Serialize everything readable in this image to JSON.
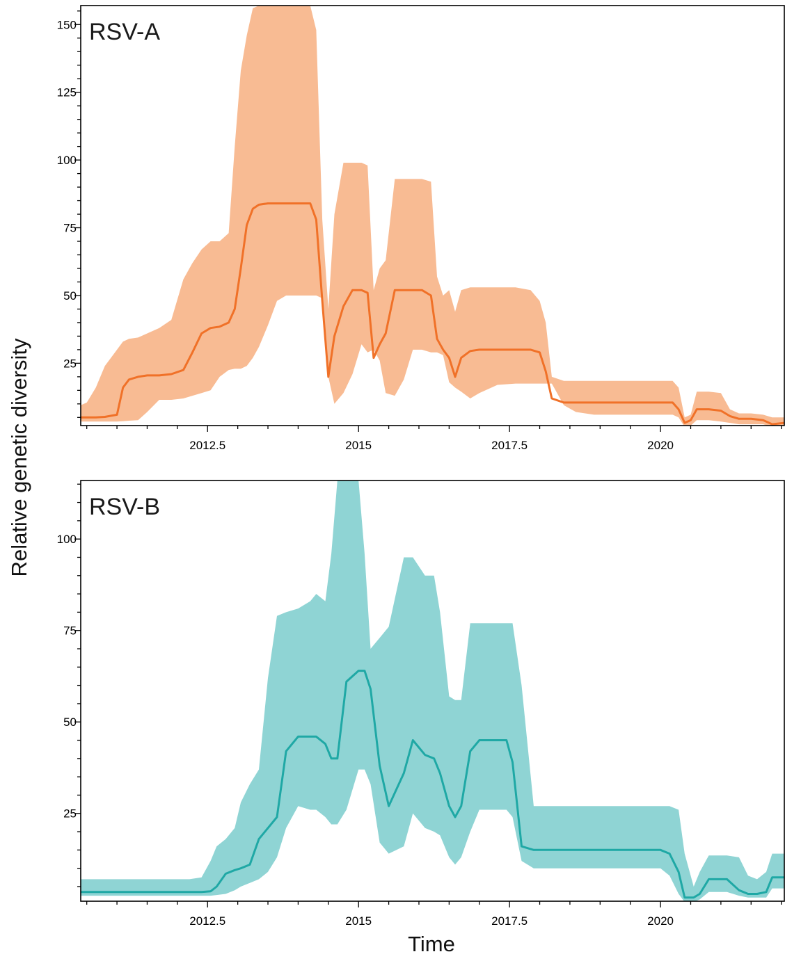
{
  "ylabel": "Relative genetic diversity",
  "xlabel": "Time",
  "colors": {
    "a_line": "#f07128",
    "a_band": "#f8bb93",
    "b_line": "#1fa8a5",
    "b_band": "#8fd4d4"
  },
  "chart_data": [
    {
      "type": "area",
      "label": "RSV-A",
      "xlim": [
        2010.4,
        2022.05
      ],
      "ylim": [
        2,
        157
      ],
      "xticks": [
        2012.5,
        2015,
        2017.5,
        2020
      ],
      "xtick_labels": [
        "2012.5",
        "2015",
        "2017.5",
        "2020"
      ],
      "yticks": [
        25,
        50,
        75,
        100,
        125,
        150
      ],
      "ytick_labels": [
        "25",
        "50",
        "75",
        "100",
        "125",
        "150"
      ],
      "x": [
        2010.4,
        2010.5,
        2010.65,
        2010.8,
        2011.0,
        2011.1,
        2011.2,
        2011.35,
        2011.5,
        2011.7,
        2011.9,
        2012.1,
        2012.25,
        2012.4,
        2012.55,
        2012.7,
        2012.85,
        2012.95,
        2013.05,
        2013.15,
        2013.25,
        2013.35,
        2013.5,
        2013.65,
        2013.8,
        2014.0,
        2014.2,
        2014.3,
        2014.4,
        2014.5,
        2014.6,
        2014.75,
        2014.9,
        2015.05,
        2015.15,
        2015.25,
        2015.35,
        2015.45,
        2015.6,
        2015.75,
        2015.9,
        2016.05,
        2016.2,
        2016.3,
        2016.4,
        2016.5,
        2016.6,
        2016.7,
        2016.85,
        2017.0,
        2017.3,
        2017.6,
        2017.85,
        2018.0,
        2018.1,
        2018.2,
        2018.4,
        2018.6,
        2018.9,
        2019.2,
        2019.6,
        2020.0,
        2020.2,
        2020.3,
        2020.4,
        2020.5,
        2020.6,
        2020.8,
        2021.0,
        2021.15,
        2021.3,
        2021.5,
        2021.7,
        2021.85,
        2022.05
      ],
      "y": [
        5,
        5,
        5,
        5.2,
        6,
        16,
        19,
        20,
        20.5,
        20.5,
        21,
        22.5,
        29,
        36,
        38,
        38.5,
        40,
        45,
        60,
        76,
        82,
        83.5,
        84,
        84,
        84,
        84,
        84,
        78,
        48,
        20,
        35,
        46,
        52,
        52,
        51,
        27,
        32,
        36,
        52,
        52,
        52,
        52,
        50,
        34,
        30,
        27,
        20,
        27,
        29.5,
        30,
        30,
        30,
        30,
        29,
        22,
        12,
        10.5,
        10.5,
        10.5,
        10.5,
        10.5,
        10.5,
        10.5,
        8,
        3,
        4,
        8,
        8,
        7.5,
        5.5,
        4.5,
        4.5,
        4,
        2.5,
        3
      ],
      "lower": [
        3.5,
        3.5,
        3.5,
        3.5,
        3.5,
        3.5,
        3.5,
        3.5,
        3.5,
        3.5,
        3.5,
        3.5,
        3.5,
        3.5,
        3.5,
        3.5,
        3.5,
        3.5,
        3.5,
        3.5,
        3.5,
        3.5,
        3.5,
        3.5,
        3.5,
        3.5,
        3.5,
        3.5,
        3.5,
        3.5,
        3.5,
        3.5,
        3.5,
        3.5,
        3.5,
        3.5,
        3.5,
        3.5,
        3.5,
        3.5,
        3.5,
        3.5,
        3.5,
        3.5,
        3.5,
        3.5,
        3.5,
        3.5,
        3.5,
        3.5,
        3.5,
        3.5,
        3.5,
        3.5,
        3.5,
        3.5,
        3.5,
        3.5,
        3.5,
        3.5,
        3.5,
        3.5,
        3.5,
        3.5,
        1.5,
        2,
        4,
        4,
        3.5,
        3,
        2.5,
        2.5,
        2.5,
        1.5,
        1.5
      ],
      "upper": [
        9.5,
        10.5,
        16,
        24,
        30,
        33,
        34,
        34.5,
        36,
        38,
        41,
        56,
        62,
        67,
        70,
        70,
        73,
        105,
        133,
        146,
        156,
        157,
        157,
        157,
        157,
        157,
        157,
        148,
        78,
        45,
        80,
        99,
        99,
        99,
        98,
        52,
        60,
        63,
        93,
        93,
        93,
        93,
        92,
        57,
        50,
        52,
        44,
        52,
        53,
        53,
        53,
        53,
        52,
        48,
        40,
        20,
        18.5,
        18.5,
        18.5,
        18.5,
        18.5,
        18.5,
        18.5,
        16,
        5,
        6,
        14.5,
        14.5,
        14,
        8,
        6.5,
        6.5,
        6,
        5,
        5
      ],
      "lower_band": [
        3.5,
        3.5,
        3.5,
        3.5,
        3.5,
        3.6,
        3.8,
        4,
        7,
        11.5,
        11.5,
        12,
        13,
        14,
        15,
        20,
        22.5,
        23,
        23,
        24,
        27,
        31,
        39,
        48,
        50,
        50,
        50,
        50,
        49,
        20,
        10,
        14,
        21,
        32,
        29,
        30,
        26,
        14,
        13,
        19,
        30,
        30,
        29,
        29,
        28,
        18,
        16,
        14.5,
        12,
        14,
        17,
        17.5,
        17.5,
        17.5,
        17.5,
        17.5,
        9.5,
        7,
        6,
        6,
        6,
        6,
        6,
        5,
        1.5,
        2,
        4,
        4,
        3.5,
        3,
        2.5,
        2.5,
        2.5,
        1.5,
        1.5
      ]
    },
    {
      "type": "area",
      "label": "RSV-B",
      "xlim": [
        2010.4,
        2022.05
      ],
      "ylim": [
        1,
        116
      ],
      "xticks": [
        2012.5,
        2015,
        2017.5,
        2020
      ],
      "xtick_labels": [
        "2012.5",
        "2015",
        "2017.5",
        "2020"
      ],
      "yticks": [
        25,
        50,
        75,
        100
      ],
      "ytick_labels": [
        "25",
        "50",
        "75",
        "100"
      ],
      "x": [
        2010.4,
        2011.0,
        2011.5,
        2012.0,
        2012.2,
        2012.4,
        2012.55,
        2012.65,
        2012.8,
        2012.95,
        2013.05,
        2013.2,
        2013.35,
        2013.5,
        2013.65,
        2013.8,
        2014.0,
        2014.2,
        2014.3,
        2014.45,
        2014.55,
        2014.65,
        2014.8,
        2015.0,
        2015.1,
        2015.2,
        2015.35,
        2015.5,
        2015.75,
        2015.9,
        2016.1,
        2016.25,
        2016.35,
        2016.5,
        2016.6,
        2016.7,
        2016.85,
        2017.0,
        2017.2,
        2017.35,
        2017.45,
        2017.55,
        2017.7,
        2017.9,
        2018.2,
        2018.6,
        2019.0,
        2019.4,
        2019.8,
        2020.0,
        2020.15,
        2020.3,
        2020.4,
        2020.55,
        2020.65,
        2020.8,
        2021.0,
        2021.1,
        2021.3,
        2021.45,
        2021.6,
        2021.75,
        2021.85,
        2022.05
      ],
      "y": [
        3.5,
        3.5,
        3.5,
        3.5,
        3.5,
        3.5,
        3.7,
        5,
        8.5,
        9.5,
        10,
        11,
        18,
        21,
        24,
        42,
        46,
        46,
        46,
        44,
        40,
        40,
        61,
        64,
        64,
        59,
        38,
        27,
        36,
        45,
        41,
        40,
        36,
        27,
        24,
        27,
        42,
        45,
        45,
        45,
        45,
        39,
        16,
        15,
        15,
        15,
        15,
        15,
        15,
        15,
        14,
        9,
        2,
        2,
        3,
        7,
        7,
        7,
        4,
        3,
        3,
        3.5,
        7.5,
        7.5
      ],
      "lower": [
        3.5,
        3.5,
        3.5,
        3.5,
        3.5,
        3.5,
        3.5,
        3.5,
        3.5,
        3.5,
        3.5,
        3.5,
        3.5,
        3.5,
        3.5,
        3.5,
        3.5,
        3.5,
        3.5,
        3.5,
        3.5,
        3.5,
        3.5,
        3.5,
        3.5,
        3.5,
        3.5,
        3.5,
        3.5,
        3.5,
        3.5,
        3.5,
        3.5,
        3.5,
        3.5,
        3.5,
        3.5,
        3.5,
        3.5,
        3.5,
        3.5,
        3.5,
        3.5,
        3.5,
        3.5,
        3.5,
        3.5,
        3.5,
        3.5,
        3.5,
        3.5,
        3.5,
        3.5,
        3.5,
        3.5,
        3.5,
        3.5,
        3.5,
        3.5,
        3.5,
        3.5,
        3.5,
        3.5,
        3.5
      ],
      "upper": [
        7,
        7,
        7,
        7,
        7,
        7.5,
        12,
        16,
        18,
        21,
        28,
        33,
        37,
        62,
        79,
        80,
        81,
        83,
        85,
        83,
        96,
        116,
        116,
        116,
        96,
        70,
        73,
        76,
        95,
        95,
        90,
        90,
        80,
        57,
        56,
        56,
        77,
        77,
        77,
        77,
        77,
        77,
        60,
        27,
        27,
        27,
        27,
        27,
        27,
        27,
        27,
        26,
        14,
        5,
        9,
        13.5,
        13.5,
        13.5,
        13,
        8,
        7,
        9,
        14,
        14
      ],
      "lower_band": [
        2.5,
        2.5,
        2.5,
        2.5,
        2.5,
        2.5,
        2.5,
        2.7,
        3,
        4,
        5,
        6,
        7,
        9,
        13,
        21,
        27,
        26,
        26,
        24,
        22,
        22,
        26,
        37,
        37,
        33,
        17,
        14,
        16,
        25,
        21,
        20,
        19,
        13,
        11,
        13,
        20,
        26,
        26,
        26,
        26,
        24,
        12,
        10,
        10,
        10,
        10,
        10,
        10,
        10,
        8,
        3,
        0.8,
        0.8,
        1.5,
        3.5,
        3.5,
        3.5,
        2.5,
        2,
        2,
        2,
        4.5,
        4.5
      ]
    }
  ]
}
